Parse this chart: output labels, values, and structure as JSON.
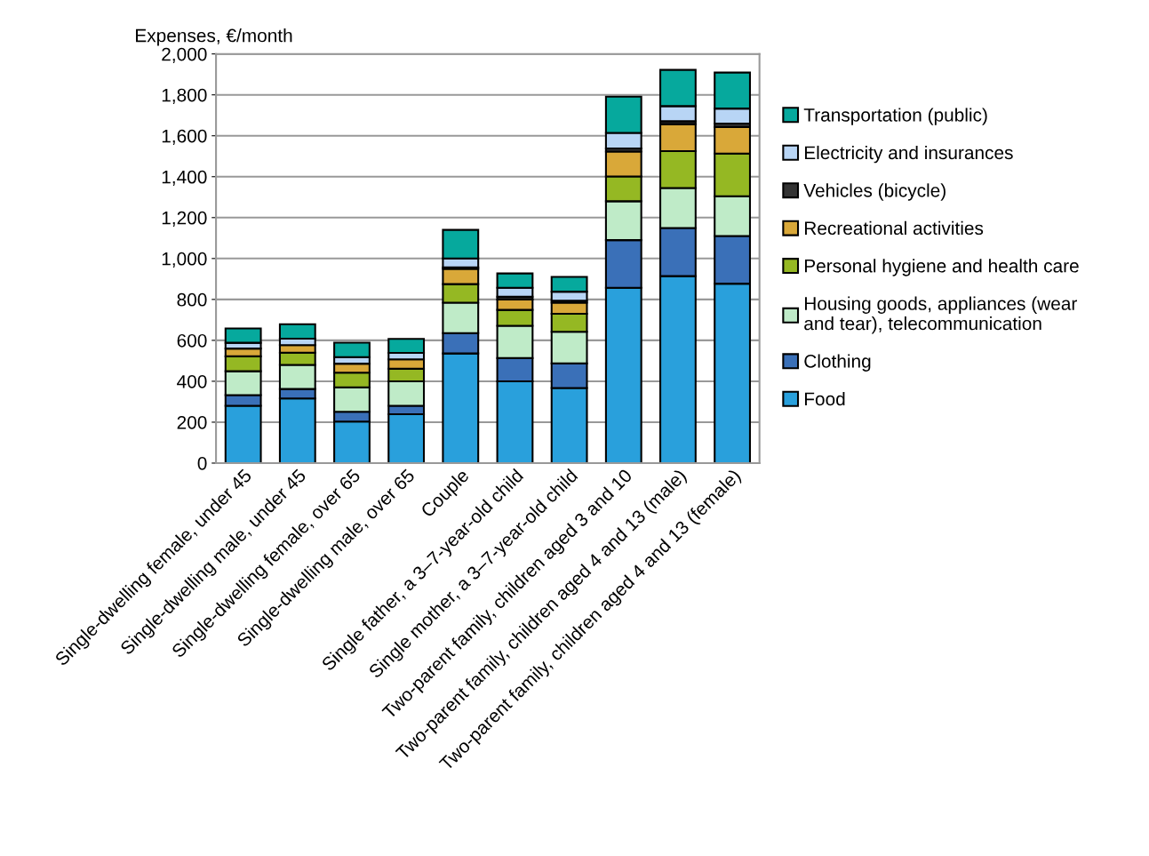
{
  "chart_data": {
    "type": "bar",
    "stacked": true,
    "ylabel": "Expenses, €/month",
    "categories": [
      "Single-dwelling female, under 45",
      "Single-dwelling male, under 45",
      "Single-dwelling female, over 65",
      "Single-dwelling male, over 65",
      "Couple",
      "Single father, a 3–7-year-old child",
      "Single mother, a 3–7-year-old child",
      "Two-parent family, children aged 3 and 10",
      "Two-parent family, children aged 4 and 13 (male)",
      "Two-parent family, children aged 4 and 13 (female)"
    ],
    "series": [
      {
        "name": "Food",
        "color": "#29a0dc",
        "values": [
          280,
          316,
          203,
          239,
          536,
          400,
          367,
          857,
          914,
          877
        ]
      },
      {
        "name": "Clothing",
        "color": "#3a70b8",
        "values": [
          52,
          46,
          48,
          41,
          99,
          113,
          120,
          233,
          235,
          233
        ]
      },
      {
        "name": "Housing goods, appliances (wear\nand tear), telecommunication",
        "color": "#bfebc8",
        "values": [
          117,
          118,
          119,
          120,
          149,
          158,
          155,
          190,
          196,
          194
        ]
      },
      {
        "name": "Personal hygiene and health care",
        "color": "#95b823",
        "values": [
          73,
          60,
          72,
          61,
          91,
          78,
          88,
          121,
          180,
          209
        ]
      },
      {
        "name": "Recreational activities",
        "color": "#d9a839",
        "values": [
          38,
          37,
          44,
          46,
          74,
          51,
          54,
          122,
          132,
          130
        ]
      },
      {
        "name": "Vehicles (bicycle)",
        "color": "#333333",
        "values": [
          null,
          null,
          null,
          null,
          8,
          13,
          10,
          15,
          14,
          17
        ]
      },
      {
        "name": "Electricity and insurances",
        "color": "#b8d5f5",
        "values": [
          28,
          31,
          32,
          32,
          43,
          44,
          44,
          76,
          74,
          73
        ]
      },
      {
        "name": "Transportation (public)",
        "color": "#06a99d",
        "values": [
          70,
          71,
          71,
          68,
          140,
          70,
          72,
          177,
          177,
          176
        ]
      }
    ],
    "ylim": [
      0,
      2000
    ],
    "yticks": [
      0,
      200,
      400,
      600,
      800,
      {
        "value": 1000,
        "label": "1,000"
      },
      {
        "value": 1200,
        "label": "1,200"
      },
      {
        "value": 1400,
        "label": "1,400"
      },
      {
        "value": 1600,
        "label": "1,600"
      },
      {
        "value": 1800,
        "label": "1,800"
      },
      {
        "value": 2000,
        "label": "2,000"
      }
    ],
    "grid": "y",
    "legend": "right"
  }
}
